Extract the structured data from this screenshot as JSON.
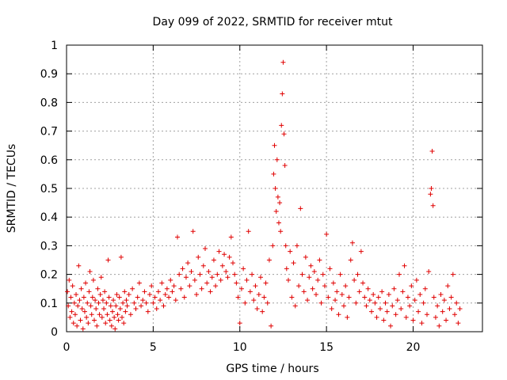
{
  "chart_data": {
    "type": "scatter",
    "title": "Day 099 of 2022, SRMTID for receiver mtut",
    "xlabel": "GPS time / hours",
    "ylabel": "SRMTID / TECUs",
    "xlim": [
      0,
      24
    ],
    "ylim": [
      0,
      1
    ],
    "grid": true,
    "marker": "+",
    "color": "#e00000",
    "x_ticks": [
      0,
      5,
      10,
      15,
      20
    ],
    "x_tick_labels": [
      "0",
      "5",
      "10",
      "15",
      "20"
    ],
    "y_ticks": [
      0,
      0.1,
      0.2,
      0.3,
      0.4,
      0.5,
      0.6,
      0.7,
      0.8,
      0.9,
      1
    ],
    "y_tick_labels": [
      "0",
      "0.1",
      "0.2",
      "0.3",
      "0.4",
      "0.5",
      "0.6",
      "0.7",
      "0.8",
      "0.9",
      "1"
    ],
    "series": [
      {
        "name": "SRMTID",
        "points": [
          [
            0.05,
            0.14
          ],
          [
            0.1,
            0.09
          ],
          [
            0.15,
            0.18
          ],
          [
            0.2,
            0.05
          ],
          [
            0.25,
            0.12
          ],
          [
            0.3,
            0.07
          ],
          [
            0.35,
            0.16
          ],
          [
            0.4,
            0.03
          ],
          [
            0.45,
            0.1
          ],
          [
            0.5,
            0.06
          ],
          [
            0.55,
            0.13
          ],
          [
            0.6,
            0.02
          ],
          [
            0.65,
            0.09
          ],
          [
            0.7,
            0.23
          ],
          [
            0.75,
            0.11
          ],
          [
            0.8,
            0.04
          ],
          [
            0.85,
            0.15
          ],
          [
            0.9,
            0.08
          ],
          [
            0.95,
            0.01
          ],
          [
            1.0,
            0.12
          ],
          [
            1.05,
            0.07
          ],
          [
            1.1,
            0.17
          ],
          [
            1.15,
            0.05
          ],
          [
            1.2,
            0.1
          ],
          [
            1.25,
            0.03
          ],
          [
            1.3,
            0.14
          ],
          [
            1.35,
            0.21
          ],
          [
            1.4,
            0.09
          ],
          [
            1.45,
            0.06
          ],
          [
            1.5,
            0.12
          ],
          [
            1.55,
            0.18
          ],
          [
            1.6,
            0.04
          ],
          [
            1.65,
            0.11
          ],
          [
            1.7,
            0.08
          ],
          [
            1.75,
            0.02
          ],
          [
            1.8,
            0.15
          ],
          [
            1.85,
            0.1
          ],
          [
            1.9,
            0.06
          ],
          [
            1.95,
            0.13
          ],
          [
            2.0,
            0.19
          ],
          [
            2.05,
            0.05
          ],
          [
            2.1,
            0.11
          ],
          [
            2.15,
            0.08
          ],
          [
            2.2,
            0.14
          ],
          [
            2.25,
            0.03
          ],
          [
            2.3,
            0.1
          ],
          [
            2.35,
            0.06
          ],
          [
            2.4,
            0.25
          ],
          [
            2.45,
            0.12
          ],
          [
            2.5,
            0.04
          ],
          [
            2.55,
            0.09
          ],
          [
            2.6,
            0.02
          ],
          [
            2.65,
            0.07
          ],
          [
            2.7,
            0.11
          ],
          [
            2.75,
            0.05
          ],
          [
            2.8,
            0.01
          ],
          [
            2.85,
            0.09
          ],
          [
            2.9,
            0.13
          ],
          [
            2.95,
            0.06
          ],
          [
            3.0,
            0.04
          ],
          [
            3.05,
            0.12
          ],
          [
            3.1,
            0.08
          ],
          [
            3.15,
            0.26
          ],
          [
            3.2,
            0.05
          ],
          [
            3.25,
            0.1
          ],
          [
            3.3,
            0.03
          ],
          [
            3.35,
            0.14
          ],
          [
            3.4,
            0.07
          ],
          [
            3.45,
            0.11
          ],
          [
            3.5,
            0.09
          ],
          [
            3.6,
            0.13
          ],
          [
            3.7,
            0.06
          ],
          [
            3.8,
            0.15
          ],
          [
            3.9,
            0.1
          ],
          [
            4.0,
            0.08
          ],
          [
            4.1,
            0.12
          ],
          [
            4.2,
            0.17
          ],
          [
            4.3,
            0.09
          ],
          [
            4.4,
            0.11
          ],
          [
            4.5,
            0.14
          ],
          [
            4.6,
            0.1
          ],
          [
            4.7,
            0.07
          ],
          [
            4.8,
            0.13
          ],
          [
            4.9,
            0.16
          ],
          [
            5.0,
            0.1
          ],
          [
            5.1,
            0.12
          ],
          [
            5.2,
            0.08
          ],
          [
            5.3,
            0.14
          ],
          [
            5.4,
            0.11
          ],
          [
            5.5,
            0.17
          ],
          [
            5.6,
            0.09
          ],
          [
            5.7,
            0.13
          ],
          [
            5.8,
            0.15
          ],
          [
            5.9,
            0.12
          ],
          [
            6.0,
            0.18
          ],
          [
            6.1,
            0.14
          ],
          [
            6.2,
            0.16
          ],
          [
            6.3,
            0.11
          ],
          [
            6.4,
            0.33
          ],
          [
            6.5,
            0.2
          ],
          [
            6.6,
            0.15
          ],
          [
            6.7,
            0.22
          ],
          [
            6.8,
            0.12
          ],
          [
            6.9,
            0.19
          ],
          [
            7.0,
            0.24
          ],
          [
            7.1,
            0.16
          ],
          [
            7.2,
            0.21
          ],
          [
            7.3,
            0.35
          ],
          [
            7.4,
            0.18
          ],
          [
            7.5,
            0.13
          ],
          [
            7.6,
            0.26
          ],
          [
            7.7,
            0.2
          ],
          [
            7.8,
            0.15
          ],
          [
            7.9,
            0.23
          ],
          [
            8.0,
            0.29
          ],
          [
            8.1,
            0.17
          ],
          [
            8.2,
            0.21
          ],
          [
            8.3,
            0.14
          ],
          [
            8.4,
            0.19
          ],
          [
            8.5,
            0.25
          ],
          [
            8.6,
            0.16
          ],
          [
            8.7,
            0.2
          ],
          [
            8.8,
            0.28
          ],
          [
            8.9,
            0.18
          ],
          [
            9.0,
            0.23
          ],
          [
            9.1,
            0.27
          ],
          [
            9.2,
            0.21
          ],
          [
            9.3,
            0.19
          ],
          [
            9.4,
            0.26
          ],
          [
            9.5,
            0.33
          ],
          [
            9.6,
            0.24
          ],
          [
            9.7,
            0.2
          ],
          [
            9.8,
            0.17
          ],
          [
            9.9,
            0.12
          ],
          [
            10.0,
            0.03
          ],
          [
            10.1,
            0.15
          ],
          [
            10.2,
            0.22
          ],
          [
            10.3,
            0.1
          ],
          [
            10.4,
            0.18
          ],
          [
            10.5,
            0.35
          ],
          [
            10.6,
            0.14
          ],
          [
            10.7,
            0.2
          ],
          [
            10.8,
            0.11
          ],
          [
            10.9,
            0.16
          ],
          [
            11.0,
            0.08
          ],
          [
            11.1,
            0.13
          ],
          [
            11.2,
            0.19
          ],
          [
            11.3,
            0.07
          ],
          [
            11.4,
            0.12
          ],
          [
            11.5,
            0.17
          ],
          [
            11.6,
            0.1
          ],
          [
            11.7,
            0.25
          ],
          [
            11.8,
            0.02
          ],
          [
            11.9,
            0.3
          ],
          [
            11.95,
            0.55
          ],
          [
            12.0,
            0.65
          ],
          [
            12.05,
            0.5
          ],
          [
            12.1,
            0.42
          ],
          [
            12.15,
            0.6
          ],
          [
            12.2,
            0.47
          ],
          [
            12.25,
            0.38
          ],
          [
            12.3,
            0.45
          ],
          [
            12.35,
            0.35
          ],
          [
            12.4,
            0.72
          ],
          [
            12.45,
            0.83
          ],
          [
            12.5,
            0.94
          ],
          [
            12.55,
            0.69
          ],
          [
            12.6,
            0.58
          ],
          [
            12.65,
            0.3
          ],
          [
            12.7,
            0.22
          ],
          [
            12.8,
            0.18
          ],
          [
            12.9,
            0.28
          ],
          [
            13.0,
            0.12
          ],
          [
            13.1,
            0.24
          ],
          [
            13.2,
            0.09
          ],
          [
            13.3,
            0.3
          ],
          [
            13.4,
            0.16
          ],
          [
            13.5,
            0.43
          ],
          [
            13.6,
            0.2
          ],
          [
            13.7,
            0.14
          ],
          [
            13.8,
            0.26
          ],
          [
            13.9,
            0.11
          ],
          [
            14.0,
            0.19
          ],
          [
            14.1,
            0.23
          ],
          [
            14.2,
            0.15
          ],
          [
            14.3,
            0.21
          ],
          [
            14.4,
            0.13
          ],
          [
            14.5,
            0.18
          ],
          [
            14.6,
            0.25
          ],
          [
            14.7,
            0.1
          ],
          [
            14.8,
            0.2
          ],
          [
            14.9,
            0.16
          ],
          [
            15.0,
            0.34
          ],
          [
            15.1,
            0.12
          ],
          [
            15.2,
            0.22
          ],
          [
            15.3,
            0.08
          ],
          [
            15.4,
            0.17
          ],
          [
            15.5,
            0.11
          ],
          [
            15.6,
            0.14
          ],
          [
            15.7,
            0.06
          ],
          [
            15.8,
            0.2
          ],
          [
            15.9,
            0.13
          ],
          [
            16.0,
            0.09
          ],
          [
            16.1,
            0.16
          ],
          [
            16.2,
            0.05
          ],
          [
            16.3,
            0.12
          ],
          [
            16.4,
            0.25
          ],
          [
            16.5,
            0.31
          ],
          [
            16.6,
            0.18
          ],
          [
            16.7,
            0.1
          ],
          [
            16.8,
            0.2
          ],
          [
            16.9,
            0.14
          ],
          [
            17.0,
            0.28
          ],
          [
            17.1,
            0.17
          ],
          [
            17.2,
            0.12
          ],
          [
            17.3,
            0.09
          ],
          [
            17.4,
            0.15
          ],
          [
            17.5,
            0.11
          ],
          [
            17.6,
            0.07
          ],
          [
            17.7,
            0.13
          ],
          [
            17.8,
            0.1
          ],
          [
            17.9,
            0.05
          ],
          [
            18.0,
            0.12
          ],
          [
            18.1,
            0.08
          ],
          [
            18.2,
            0.14
          ],
          [
            18.3,
            0.04
          ],
          [
            18.4,
            0.1
          ],
          [
            18.5,
            0.07
          ],
          [
            18.6,
            0.13
          ],
          [
            18.7,
            0.02
          ],
          [
            18.8,
            0.09
          ],
          [
            18.9,
            0.15
          ],
          [
            19.0,
            0.06
          ],
          [
            19.1,
            0.11
          ],
          [
            19.2,
            0.2
          ],
          [
            19.3,
            0.08
          ],
          [
            19.4,
            0.14
          ],
          [
            19.5,
            0.23
          ],
          [
            19.6,
            0.05
          ],
          [
            19.7,
            0.12
          ],
          [
            19.8,
            0.09
          ],
          [
            19.9,
            0.16
          ],
          [
            20.0,
            0.04
          ],
          [
            20.1,
            0.11
          ],
          [
            20.2,
            0.18
          ],
          [
            20.3,
            0.07
          ],
          [
            20.4,
            0.13
          ],
          [
            20.5,
            0.03
          ],
          [
            20.6,
            0.1
          ],
          [
            20.7,
            0.15
          ],
          [
            20.8,
            0.06
          ],
          [
            20.9,
            0.21
          ],
          [
            21.0,
            0.48
          ],
          [
            21.05,
            0.5
          ],
          [
            21.1,
            0.63
          ],
          [
            21.15,
            0.44
          ],
          [
            21.2,
            0.12
          ],
          [
            21.3,
            0.05
          ],
          [
            21.4,
            0.09
          ],
          [
            21.5,
            0.02
          ],
          [
            21.6,
            0.13
          ],
          [
            21.7,
            0.07
          ],
          [
            21.8,
            0.11
          ],
          [
            21.9,
            0.04
          ],
          [
            22.0,
            0.16
          ],
          [
            22.1,
            0.08
          ],
          [
            22.2,
            0.12
          ],
          [
            22.3,
            0.2
          ],
          [
            22.4,
            0.06
          ],
          [
            22.5,
            0.1
          ],
          [
            22.6,
            0.03
          ],
          [
            22.7,
            0.08
          ]
        ]
      }
    ]
  }
}
